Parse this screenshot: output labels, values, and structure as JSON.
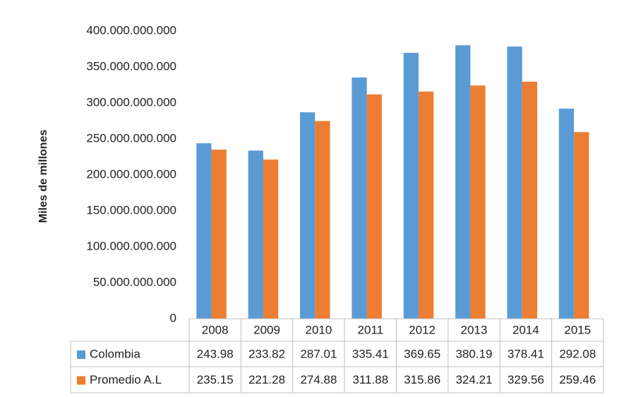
{
  "chart_data": {
    "type": "bar",
    "y_label": "Miles de millones",
    "categories": [
      "2008",
      "2009",
      "2010",
      "2011",
      "2012",
      "2013",
      "2014",
      "2015"
    ],
    "series": [
      {
        "name": "Colombia",
        "color": "#5b9bd5",
        "values": [
          243980000000,
          233820000000,
          287010000000,
          335410000000,
          369650000000,
          380190000000,
          378410000000,
          292080000000
        ],
        "value_labels": [
          "243.98",
          "233.82",
          "287.01",
          "335.41",
          "369.65",
          "380.19",
          "378.41",
          "292.08"
        ]
      },
      {
        "name": "Promedio A.L",
        "color": "#ed7d31",
        "values": [
          235150000000,
          221280000000,
          274880000000,
          311880000000,
          315860000000,
          324210000000,
          329560000000,
          259460000000
        ],
        "value_labels": [
          "235.15",
          "221.28",
          "274.88",
          "311.88",
          "315.86",
          "324.21",
          "329.56",
          "259.46"
        ]
      }
    ],
    "ylim": [
      0,
      400000000000
    ],
    "yticks": [
      0,
      {
        "value": 50000000000,
        "label": "50.000.000.000"
      },
      {
        "value": 100000000000,
        "label": "100.000.000.000"
      },
      {
        "value": 150000000000,
        "label": "150.000.000.000"
      },
      {
        "value": 200000000000,
        "label": "200.000.000.000"
      },
      {
        "value": 250000000000,
        "label": "250.000.000.000"
      },
      {
        "value": 300000000000,
        "label": "300.000.000.000"
      },
      {
        "value": 350000000000,
        "label": "350.000.000.000"
      },
      {
        "value": 400000000000,
        "label": "400.000.000.000"
      }
    ],
    "grid": false
  }
}
